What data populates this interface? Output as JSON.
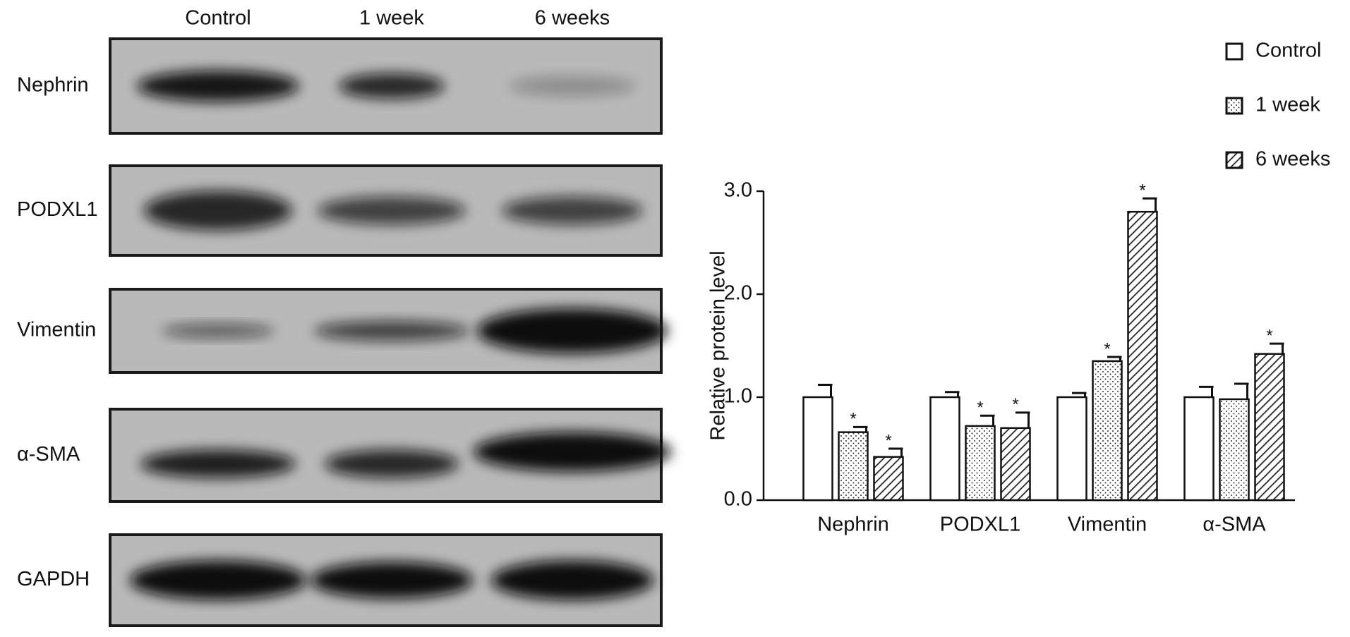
{
  "blot": {
    "lanes": [
      "Control",
      "1 week",
      "6 weeks"
    ],
    "rows": [
      "Nephrin",
      "PODXL1",
      "Vimentin",
      "α-SMA",
      "GAPDH"
    ]
  },
  "chart_data": {
    "type": "bar",
    "y_label": "Relative protein level",
    "categories": [
      "Nephrin",
      "PODXL1",
      "Vimentin",
      "α-SMA"
    ],
    "series": [
      {
        "name": "Control",
        "color": "#ffffff",
        "pattern": "none",
        "values": [
          1.0,
          1.0,
          1.0,
          1.0
        ],
        "errors": [
          0.12,
          0.05,
          0.04,
          0.1
        ],
        "annotations": [
          null,
          null,
          null,
          null
        ]
      },
      {
        "name": "1 week",
        "color": "#ffffff",
        "pattern": "dots",
        "values": [
          0.66,
          0.72,
          1.35,
          0.98
        ],
        "errors": [
          0.05,
          0.1,
          0.04,
          0.15
        ],
        "annotations": [
          "*",
          "*",
          "*",
          null
        ]
      },
      {
        "name": "6 weeks",
        "color": "#ffffff",
        "pattern": "hatch",
        "values": [
          0.42,
          0.7,
          2.8,
          1.42
        ],
        "errors": [
          0.08,
          0.15,
          0.13,
          0.1
        ],
        "annotations": [
          "*",
          "*",
          "*",
          "*"
        ]
      }
    ],
    "ylim": [
      0,
      3.0
    ],
    "yticks": [
      {
        "value": 0,
        "label": "0.0"
      },
      {
        "value": 1,
        "label": "1.0"
      },
      {
        "value": 2,
        "label": "2.0"
      },
      {
        "value": 3,
        "label": "3.0"
      }
    ],
    "legend": "top-right"
  }
}
